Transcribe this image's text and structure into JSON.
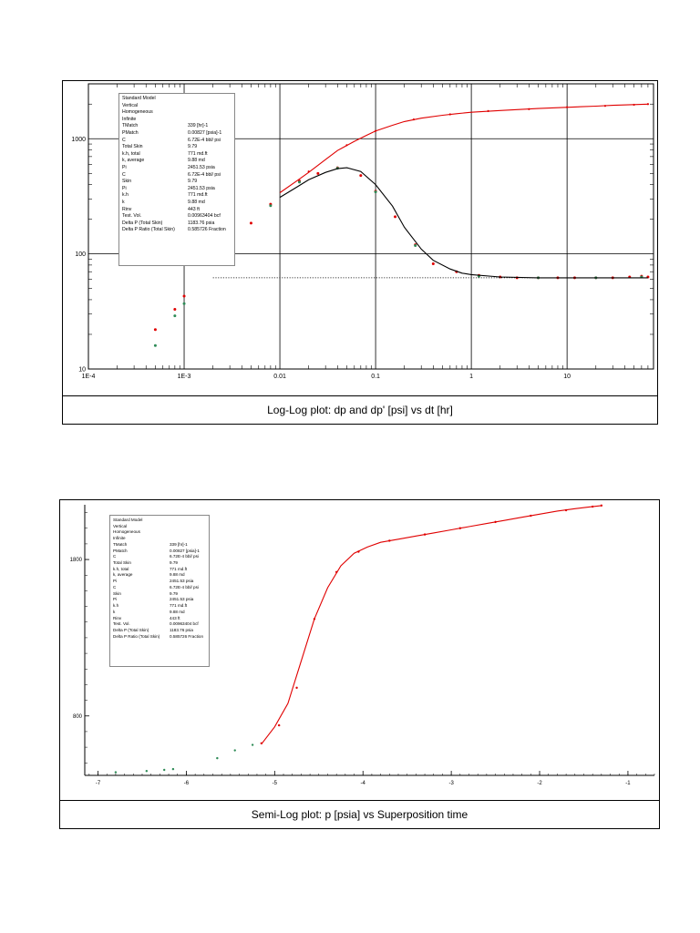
{
  "colors": {
    "model_line": "#e00000",
    "points_red": "#e00000",
    "points_green": "#2e8b57",
    "deriv_line": "#000000",
    "grid": "#000000"
  },
  "info_box": [
    {
      "k": "Standard Model",
      "v": ""
    },
    {
      "k": "Vertical",
      "v": ""
    },
    {
      "k": "Homogeneous",
      "v": ""
    },
    {
      "k": "Infinite",
      "v": ""
    },
    {
      "k": "TMatch",
      "v": "339 [hr]-1"
    },
    {
      "k": "PMatch",
      "v": "0.00827 [psia]-1"
    },
    {
      "k": "C",
      "v": "6.72E-4 bbl/ psi"
    },
    {
      "k": "Total Skin",
      "v": "9.79"
    },
    {
      "k": "k.h, total",
      "v": "771 md.ft"
    },
    {
      "k": "k, average",
      "v": "9.88 md"
    },
    {
      "k": "Pi",
      "v": "2451.53 psia"
    },
    {
      "k": "C",
      "v": "6.72E-4 bbl/ psi"
    },
    {
      "k": "Skin",
      "v": "9.79"
    },
    {
      "k": "Pi",
      "v": "2451.53 psia"
    },
    {
      "k": "k.h",
      "v": "771 md.ft"
    },
    {
      "k": "k",
      "v": "9.88 md"
    },
    {
      "k": "Rinv",
      "v": "443 ft"
    },
    {
      "k": "Test. Vol.",
      "v": "0.00963404 bcf"
    },
    {
      "k": "Delta P (Total Skin)",
      "v": "1183.76 psia"
    },
    {
      "k": "Delta P Ratio (Total Skin)",
      "v": "0.585726 Fraction"
    }
  ],
  "chart_data": [
    {
      "type": "scatter",
      "title": "Log-Log plot: dp and dp'  [psi] vs dt [hr]",
      "x_scale": "log",
      "y_scale": "log",
      "xlim": [
        0.0001,
        80
      ],
      "ylim": [
        10,
        3000
      ],
      "x_ticks": [
        0.0001,
        0.001,
        0.01,
        0.1,
        1,
        10
      ],
      "x_tick_labels": [
        "1E-4",
        "1E-3",
        "0.01",
        "0.1",
        "1",
        "10"
      ],
      "y_ticks": [
        10,
        100,
        1000
      ],
      "y_tick_labels": [
        "10",
        "100",
        "1000"
      ],
      "grid": true,
      "series": [
        {
          "kind": "points_red",
          "points": [
            [
              0.0005,
              22
            ],
            [
              0.0008,
              33
            ],
            [
              0.001,
              43
            ],
            [
              0.003,
              120
            ],
            [
              0.005,
              185
            ],
            [
              0.008,
              270
            ],
            [
              0.016,
              430
            ],
            [
              0.025,
              500
            ],
            [
              0.04,
              560
            ],
            [
              0.07,
              480
            ],
            [
              0.1,
              350
            ],
            [
              0.16,
              210
            ],
            [
              0.26,
              120
            ],
            [
              0.4,
              82
            ],
            [
              0.7,
              70
            ],
            [
              1.2,
              65
            ],
            [
              2,
              63
            ],
            [
              3,
              62
            ],
            [
              5,
              62
            ],
            [
              8,
              62
            ],
            [
              12,
              62
            ],
            [
              20,
              62
            ],
            [
              30,
              62
            ],
            [
              45,
              63
            ],
            [
              60,
              64
            ],
            [
              70,
              63
            ]
          ]
        },
        {
          "kind": "points_green",
          "points": [
            [
              0.0005,
              16
            ],
            [
              0.0008,
              29
            ],
            [
              0.001,
              37
            ],
            [
              0.008,
              262
            ],
            [
              0.016,
              420
            ],
            [
              0.04,
              555
            ],
            [
              0.1,
              345
            ],
            [
              0.26,
              118
            ],
            [
              1.2,
              64
            ],
            [
              5,
              62
            ],
            [
              20,
              62
            ],
            [
              60,
              63
            ]
          ]
        },
        {
          "kind": "model_line",
          "points": [
            [
              0.01,
              340
            ],
            [
              0.015,
              430
            ],
            [
              0.02,
              510
            ],
            [
              0.03,
              660
            ],
            [
              0.04,
              790
            ],
            [
              0.06,
              950
            ],
            [
              0.08,
              1070
            ],
            [
              0.1,
              1170
            ],
            [
              0.15,
              1310
            ],
            [
              0.2,
              1410
            ],
            [
              0.3,
              1510
            ],
            [
              0.5,
              1600
            ],
            [
              0.7,
              1650
            ],
            [
              1,
              1700
            ],
            [
              2,
              1760
            ],
            [
              3,
              1790
            ],
            [
              5,
              1830
            ],
            [
              8,
              1860
            ],
            [
              12,
              1890
            ],
            [
              20,
              1920
            ],
            [
              30,
              1950
            ],
            [
              50,
              1980
            ],
            [
              70,
              2000
            ]
          ]
        },
        {
          "kind": "points_red_upper",
          "points": [
            [
              0.02,
              520
            ],
            [
              0.05,
              880
            ],
            [
              0.1,
              1170
            ],
            [
              0.25,
              1470
            ],
            [
              0.6,
              1630
            ],
            [
              1.5,
              1740
            ],
            [
              4,
              1810
            ],
            [
              10,
              1880
            ],
            [
              25,
              1930
            ],
            [
              50,
              1975
            ],
            [
              70,
              2000
            ]
          ]
        },
        {
          "kind": "deriv_line",
          "points": [
            [
              0.01,
              310
            ],
            [
              0.015,
              380
            ],
            [
              0.02,
              440
            ],
            [
              0.03,
              510
            ],
            [
              0.04,
              550
            ],
            [
              0.05,
              560
            ],
            [
              0.07,
              520
            ],
            [
              0.1,
              400
            ],
            [
              0.15,
              260
            ],
            [
              0.2,
              170
            ],
            [
              0.3,
              110
            ],
            [
              0.4,
              88
            ],
            [
              0.6,
              74
            ],
            [
              0.8,
              68
            ],
            [
              1,
              66
            ],
            [
              2,
              63
            ],
            [
              5,
              62
            ],
            [
              20,
              62
            ],
            [
              70,
              62
            ]
          ]
        },
        {
          "kind": "flat_dotted",
          "points": [
            [
              0.002,
              62
            ],
            [
              70,
              62
            ]
          ]
        }
      ]
    },
    {
      "type": "line",
      "title": "Semi-Log plot: p [psia] vs Superposition time",
      "xlim": [
        -7.15,
        -0.7
      ],
      "ylim": [
        420,
        2150
      ],
      "x_ticks": [
        -7,
        -6,
        -5,
        -4,
        -3,
        -2,
        -1
      ],
      "x_tick_labels": [
        "-7",
        "-6",
        "-5",
        "-4",
        "-3",
        "-2",
        "-1"
      ],
      "y_ticks": [
        800,
        1800
      ],
      "y_tick_labels": [
        "800",
        "1800"
      ],
      "series": [
        {
          "kind": "model_line",
          "points": [
            [
              -5.15,
              620
            ],
            [
              -5.0,
              730
            ],
            [
              -4.85,
              880
            ],
            [
              -4.7,
              1150
            ],
            [
              -4.55,
              1420
            ],
            [
              -4.4,
              1620
            ],
            [
              -4.25,
              1760
            ],
            [
              -4.1,
              1840
            ],
            [
              -3.95,
              1880
            ],
            [
              -3.8,
              1910
            ],
            [
              -3.6,
              1930
            ],
            [
              -3.4,
              1950
            ],
            [
              -3.2,
              1970
            ],
            [
              -3.0,
              1990
            ],
            [
              -2.8,
              2010
            ],
            [
              -2.6,
              2030
            ],
            [
              -2.4,
              2050
            ],
            [
              -2.2,
              2070
            ],
            [
              -2.0,
              2090
            ],
            [
              -1.8,
              2110
            ],
            [
              -1.6,
              2125
            ],
            [
              -1.45,
              2135
            ],
            [
              -1.3,
              2145
            ]
          ]
        },
        {
          "kind": "points_red",
          "points": [
            [
              -5.15,
              625
            ],
            [
              -4.95,
              740
            ],
            [
              -4.75,
              980
            ],
            [
              -4.55,
              1420
            ],
            [
              -4.3,
              1720
            ],
            [
              -4.05,
              1850
            ],
            [
              -3.7,
              1920
            ],
            [
              -3.3,
              1960
            ],
            [
              -2.9,
              2000
            ],
            [
              -2.5,
              2040
            ],
            [
              -2.1,
              2080
            ],
            [
              -1.7,
              2115
            ],
            [
              -1.4,
              2138
            ],
            [
              -1.3,
              2145
            ]
          ]
        },
        {
          "kind": "points_green",
          "points": [
            [
              -6.8,
              440
            ],
            [
              -6.45,
              448
            ],
            [
              -6.25,
              455
            ],
            [
              -6.15,
              460
            ],
            [
              -5.65,
              530
            ],
            [
              -5.45,
              580
            ],
            [
              -5.25,
              615
            ]
          ]
        }
      ]
    }
  ]
}
